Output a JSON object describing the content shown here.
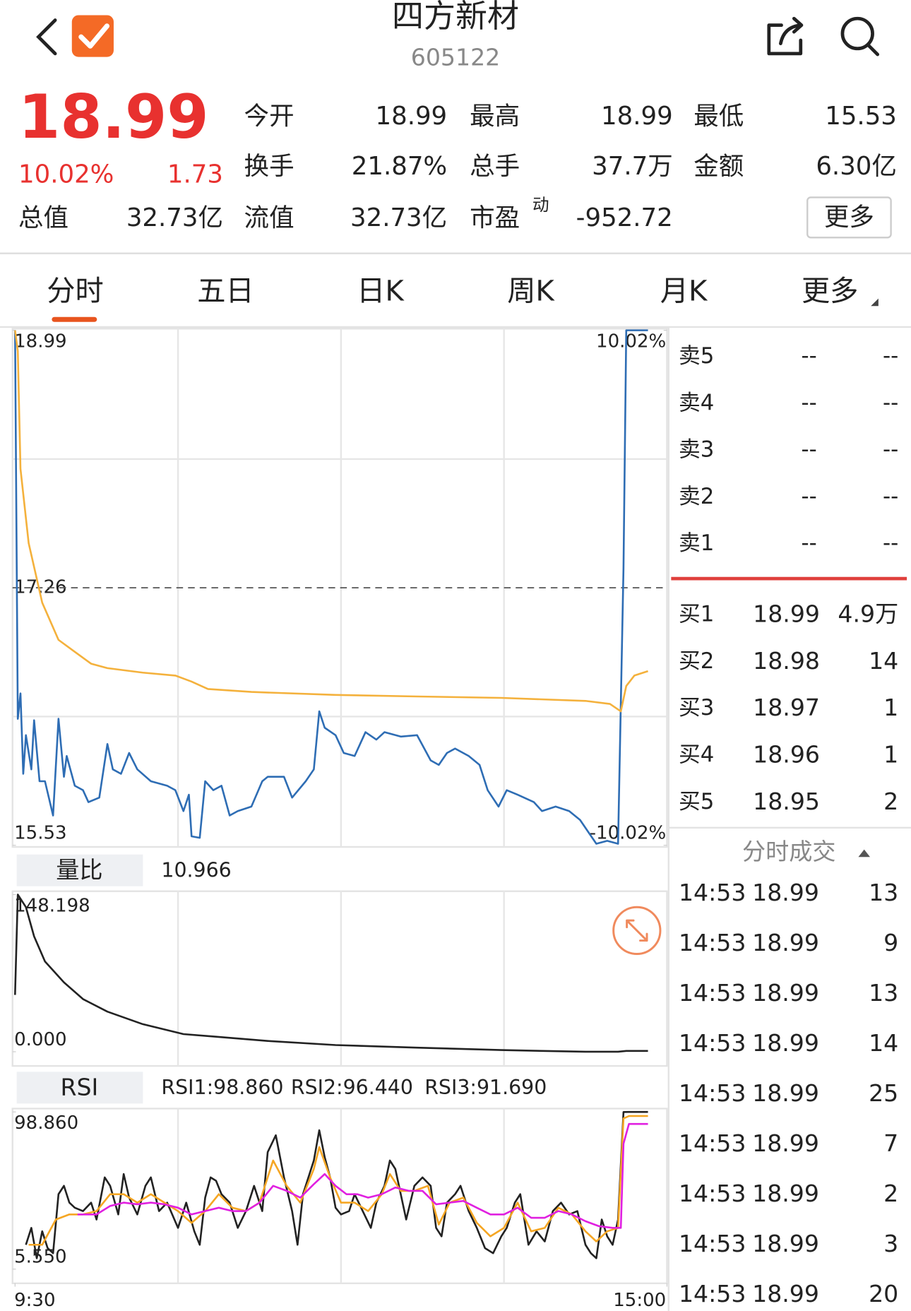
{
  "header": {
    "title": "四方新材",
    "code": "605122"
  },
  "quote": {
    "price": "18.99",
    "change_pct": "10.02%",
    "change": "1.73",
    "stats": [
      [
        "今开",
        "18.99"
      ],
      [
        "最高",
        "18.99"
      ],
      [
        "最低",
        "15.53"
      ],
      [
        "换手",
        "21.87%"
      ],
      [
        "总手",
        "37.7万"
      ],
      [
        "金额",
        "6.30亿"
      ],
      [
        "总值",
        "32.73亿"
      ],
      [
        "流值",
        "32.73亿"
      ],
      [
        "市盈",
        "-952.72"
      ]
    ],
    "pe_mark": "动",
    "more": "更多"
  },
  "tabs": [
    "分时",
    "五日",
    "日K",
    "周K",
    "月K",
    "更多"
  ],
  "order_book": {
    "asks": [
      [
        "卖5",
        "--",
        "--"
      ],
      [
        "卖4",
        "--",
        "--"
      ],
      [
        "卖3",
        "--",
        "--"
      ],
      [
        "卖2",
        "--",
        "--"
      ],
      [
        "卖1",
        "--",
        "--"
      ]
    ],
    "bids": [
      [
        "买1",
        "18.99",
        "4.9万"
      ],
      [
        "买2",
        "18.98",
        "14"
      ],
      [
        "买3",
        "18.97",
        "1"
      ],
      [
        "买4",
        "18.96",
        "1"
      ],
      [
        "买5",
        "18.95",
        "2"
      ]
    ]
  },
  "trades": {
    "title": "分时成交",
    "rows": [
      [
        "14:53",
        "18.99",
        "13"
      ],
      [
        "14:53",
        "18.99",
        "9"
      ],
      [
        "14:53",
        "18.99",
        "13"
      ],
      [
        "14:53",
        "18.99",
        "14"
      ],
      [
        "14:53",
        "18.99",
        "25"
      ],
      [
        "14:53",
        "18.99",
        "7"
      ],
      [
        "14:53",
        "18.99",
        "2"
      ],
      [
        "14:53",
        "18.99",
        "3"
      ],
      [
        "14:53",
        "18.99",
        "20"
      ]
    ]
  },
  "chart_data": [
    {
      "type": "line",
      "xlim": [
        0,
        240
      ],
      "ylim": [
        15.53,
        18.99
      ],
      "yticks": [
        18.99,
        17.26,
        15.53
      ],
      "y2lim": [
        -10.02,
        10.02
      ],
      "y2ticks": [
        {
          "value": 10.02,
          "label": "10.02%"
        },
        {
          "value": -10.02,
          "label": "-10.02%"
        }
      ],
      "series": [
        {
          "color": "#2e6db4",
          "x": [
            0,
            1,
            2,
            3,
            4,
            6,
            7,
            9,
            11,
            14,
            16,
            18,
            19,
            22,
            25,
            27,
            31,
            34,
            36,
            39,
            42,
            45,
            50,
            56,
            59,
            62,
            64,
            65,
            68,
            70,
            73,
            76,
            79,
            82,
            87,
            91,
            93,
            99,
            102,
            107,
            110,
            112,
            114,
            118,
            121,
            125,
            129,
            133,
            136,
            142,
            148,
            153,
            156,
            159,
            162,
            167,
            171,
            174,
            178,
            181,
            185,
            191,
            194,
            199,
            204,
            208,
            211,
            214,
            218,
            222,
            224,
            225,
            233
          ],
          "values": [
            18.99,
            16.38,
            16.55,
            16.01,
            16.27,
            16.04,
            16.37,
            15.96,
            15.96,
            15.73,
            16.38,
            15.99,
            16.13,
            15.93,
            15.9,
            15.82,
            15.85,
            16.21,
            16.04,
            16.01,
            16.15,
            16.04,
            15.96,
            15.93,
            15.9,
            15.76,
            15.87,
            15.59,
            15.58,
            15.96,
            15.9,
            15.93,
            15.73,
            15.76,
            15.79,
            15.96,
            15.99,
            15.99,
            15.85,
            15.96,
            16.04,
            16.43,
            16.32,
            16.27,
            16.15,
            16.13,
            16.29,
            16.24,
            16.29,
            16.26,
            16.27,
            16.1,
            16.07,
            16.15,
            16.18,
            16.13,
            16.07,
            15.9,
            15.79,
            15.9,
            15.87,
            15.82,
            15.76,
            15.79,
            15.76,
            15.7,
            15.62,
            15.54,
            15.56,
            15.54,
            17.39,
            18.99,
            18.99
          ]
        },
        {
          "color": "#f4b13c",
          "x": [
            0,
            1,
            2,
            5,
            10,
            16,
            22,
            28,
            34,
            47,
            59,
            65,
            71,
            87,
            118,
            148,
            179,
            210,
            219,
            223,
            225,
            228,
            233
          ],
          "values": [
            18.99,
            18.85,
            18.06,
            17.56,
            17.16,
            16.91,
            16.83,
            16.75,
            16.72,
            16.69,
            16.67,
            16.63,
            16.58,
            16.56,
            16.54,
            16.53,
            16.52,
            16.5,
            16.48,
            16.43,
            16.6,
            16.67,
            16.7
          ]
        }
      ]
    },
    {
      "type": "line",
      "indicator": "量比",
      "indicator_value": "10.966",
      "xlim": [
        0,
        240
      ],
      "ylim": [
        0,
        148.198
      ],
      "yticks": [
        148.198,
        {
          "value": 0,
          "label": "0.000"
        }
      ],
      "series": [
        {
          "color": "#222222",
          "x": [
            0,
            1,
            4,
            7,
            11,
            18,
            25,
            34,
            47,
            62,
            74,
            93,
            118,
            148,
            179,
            210,
            222,
            225,
            233
          ],
          "values": [
            53.6,
            148.2,
            136.4,
            108.8,
            85.1,
            65.4,
            49.7,
            37.8,
            26,
            16.6,
            14.2,
            10.2,
            6.3,
            3.9,
            1.6,
            0,
            0,
            0.8,
            0.8
          ]
        }
      ]
    },
    {
      "type": "line",
      "indicator": "RSI",
      "xlim": [
        0,
        240
      ],
      "xticks": [
        {
          "value": 0,
          "label": "9:30"
        },
        {
          "value": 240,
          "label": "15:00"
        }
      ],
      "ylim": [
        5.55,
        98.86
      ],
      "yticks": [
        {
          "value": 98.86,
          "label": "98.860"
        },
        {
          "value": 5.55,
          "label": "5.550"
        }
      ],
      "series": [
        {
          "label": "RSI1:98.860",
          "color": "#222222",
          "x": [
            4,
            6,
            8,
            10,
            12,
            14,
            16,
            18,
            20,
            22,
            25,
            28,
            30,
            33,
            35,
            38,
            40,
            42,
            45,
            48,
            50,
            53,
            56,
            60,
            63,
            66,
            68,
            70,
            72,
            74,
            76,
            79,
            82,
            85,
            88,
            91,
            93,
            96,
            99,
            102,
            104,
            106,
            108,
            110,
            112,
            114,
            116,
            118,
            120,
            123,
            125,
            128,
            131,
            133,
            136,
            138,
            140,
            142,
            144,
            147,
            150,
            153,
            155,
            157,
            159,
            162,
            164,
            167,
            170,
            173,
            176,
            179,
            181,
            184,
            186,
            189,
            192,
            195,
            198,
            201,
            204,
            207,
            210,
            212,
            214,
            216,
            218,
            220,
            222,
            224,
            226,
            233
          ],
          "values": [
            20,
            30,
            12,
            28,
            18,
            15,
            50,
            55,
            45,
            42,
            40,
            45,
            35,
            60,
            55,
            38,
            62,
            48,
            38,
            55,
            60,
            40,
            45,
            30,
            45,
            28,
            20,
            48,
            60,
            58,
            50,
            45,
            30,
            40,
            55,
            40,
            75,
            85,
            60,
            40,
            20,
            50,
            60,
            70,
            88,
            72,
            60,
            42,
            38,
            40,
            50,
            40,
            30,
            45,
            55,
            70,
            65,
            50,
            35,
            55,
            60,
            55,
            30,
            25,
            45,
            50,
            55,
            40,
            30,
            18,
            15,
            25,
            30,
            45,
            50,
            20,
            28,
            22,
            40,
            45,
            38,
            40,
            20,
            15,
            12,
            35,
            25,
            20,
            35,
            98.8,
            98.86,
            98.86
          ]
        },
        {
          "label": "RSI2:96.440",
          "color": "#f5a623",
          "x": [
            5,
            10,
            15,
            20,
            25,
            30,
            35,
            40,
            45,
            50,
            55,
            60,
            65,
            70,
            75,
            80,
            85,
            90,
            95,
            100,
            105,
            110,
            112,
            116,
            120,
            125,
            130,
            135,
            138,
            142,
            147,
            152,
            156,
            160,
            165,
            170,
            175,
            180,
            185,
            190,
            195,
            200,
            205,
            210,
            214,
            218,
            222,
            224,
            226,
            233
          ],
          "values": [
            20,
            20,
            35,
            38,
            38,
            40,
            50,
            50,
            45,
            50,
            45,
            40,
            33,
            40,
            50,
            42,
            40,
            45,
            70,
            55,
            45,
            65,
            78,
            60,
            45,
            45,
            40,
            50,
            62,
            52,
            52,
            55,
            32,
            45,
            48,
            33,
            25,
            30,
            45,
            28,
            30,
            42,
            38,
            28,
            22,
            28,
            30,
            95,
            96.44,
            96.44
          ]
        },
        {
          "label": "RSI3:91.690",
          "color": "#e020e0",
          "x": [
            23,
            30,
            35,
            40,
            45,
            50,
            55,
            60,
            65,
            70,
            75,
            80,
            85,
            90,
            95,
            100,
            105,
            110,
            114,
            118,
            122,
            126,
            130,
            135,
            140,
            145,
            150,
            155,
            160,
            165,
            170,
            175,
            180,
            185,
            190,
            195,
            200,
            205,
            210,
            215,
            220,
            223,
            224,
            226,
            233
          ],
          "values": [
            38,
            38,
            43,
            45,
            44,
            45,
            44,
            42,
            38,
            40,
            42,
            40,
            40,
            45,
            55,
            52,
            48,
            56,
            62,
            55,
            50,
            50,
            48,
            50,
            54,
            52,
            52,
            44,
            45,
            46,
            42,
            38,
            38,
            42,
            36,
            36,
            40,
            38,
            34,
            31,
            30,
            30,
            80,
            91.69,
            91.69
          ]
        }
      ]
    }
  ]
}
